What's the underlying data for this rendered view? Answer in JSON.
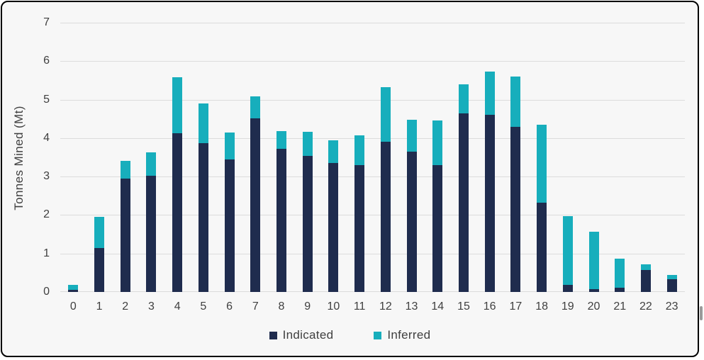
{
  "window": {
    "panel_background": "#F7F7F7",
    "border_color": "#000000",
    "text_color": "#3F3F3F",
    "gridline_color": "#DCDCDC"
  },
  "chart_data": {
    "type": "bar",
    "stacked": true,
    "title": "",
    "xlabel": "",
    "ylabel": "Tonnes Mined (Mt)",
    "ylim": [
      0,
      7
    ],
    "yticks": [
      0,
      1,
      2,
      3,
      4,
      5,
      6,
      7
    ],
    "grid": "horizontal",
    "legend_position": "bottom",
    "categories": [
      "0",
      "1",
      "2",
      "3",
      "4",
      "5",
      "6",
      "7",
      "8",
      "9",
      "10",
      "11",
      "12",
      "13",
      "14",
      "15",
      "16",
      "17",
      "18",
      "19",
      "20",
      "21",
      "22",
      "23"
    ],
    "series": [
      {
        "name": "Indicated",
        "color": "#1F2C4E",
        "values": [
          0.05,
          1.15,
          2.95,
          3.03,
          4.13,
          3.86,
          3.45,
          4.52,
          3.73,
          3.53,
          3.35,
          3.3,
          3.9,
          3.65,
          3.3,
          4.65,
          4.6,
          4.3,
          2.33,
          0.19,
          0.07,
          0.11,
          0.57,
          0.34
        ]
      },
      {
        "name": "Inferred",
        "color": "#17AEBC",
        "values": [
          0.13,
          0.8,
          0.45,
          0.6,
          1.45,
          1.04,
          0.7,
          0.57,
          0.45,
          0.63,
          0.6,
          0.78,
          1.43,
          0.82,
          1.16,
          0.75,
          1.13,
          1.3,
          2.02,
          1.78,
          1.5,
          0.76,
          0.15,
          0.1
        ]
      }
    ]
  }
}
